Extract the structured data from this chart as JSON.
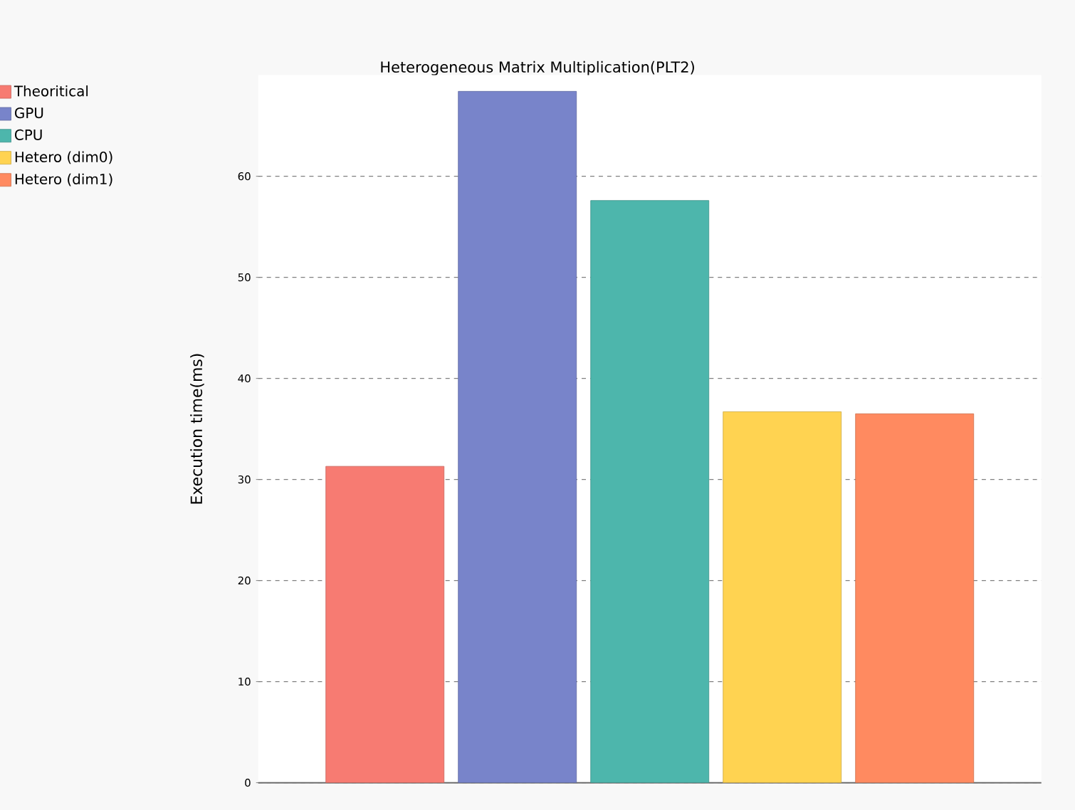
{
  "chart_data": {
    "type": "bar",
    "title": "Heterogeneous Matrix Multiplication(PLT2)",
    "ylabel": "Execution time(ms)",
    "categories": [
      null
    ],
    "series": [
      {
        "name": "Theoritical",
        "color": "#f77b72",
        "values": [
          31.3
        ]
      },
      {
        "name": "GPU",
        "color": "#7884ca",
        "values": [
          68.4
        ]
      },
      {
        "name": "CPU",
        "color": "#4db6ac",
        "values": [
          57.6
        ]
      },
      {
        "name": "Hetero (dim0)",
        "color": "#ffd351",
        "values": [
          36.7
        ]
      },
      {
        "name": "Hetero (dim1)",
        "color": "#ff8a60",
        "values": [
          36.5
        ]
      }
    ],
    "ylim": [
      0,
      70
    ],
    "yticks": [
      0,
      10,
      20,
      30,
      40,
      50,
      60
    ],
    "grid": "y",
    "legend": "top left"
  }
}
